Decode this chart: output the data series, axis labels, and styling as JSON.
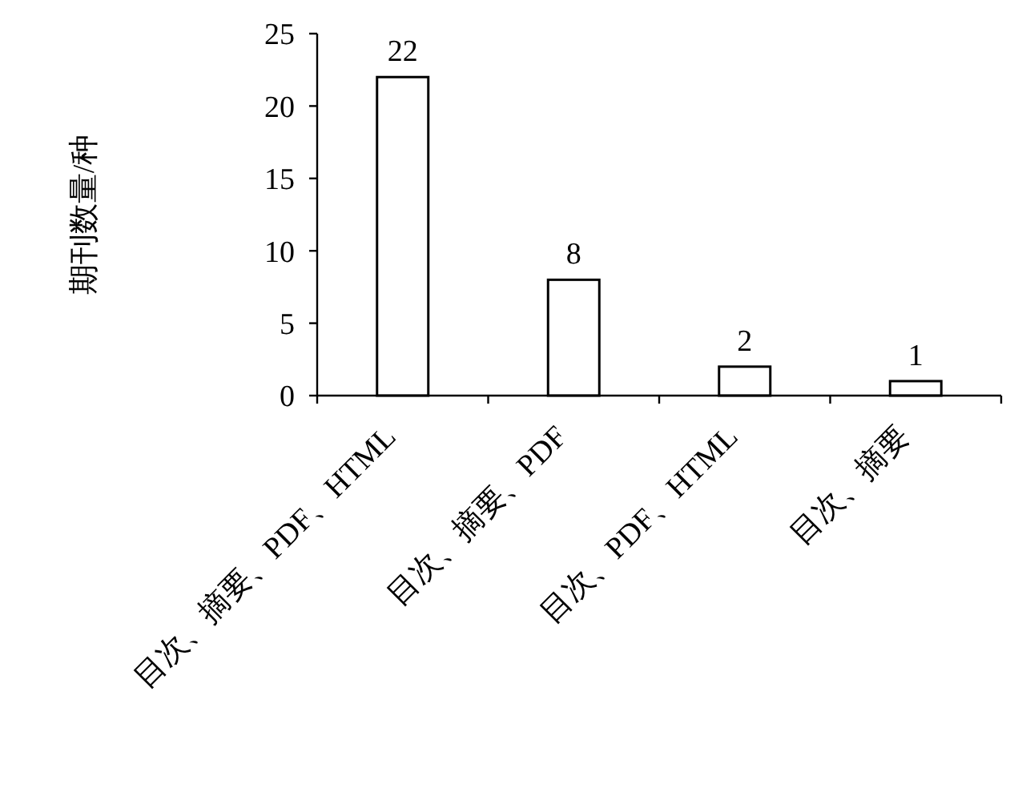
{
  "chart_data": {
    "type": "bar",
    "ylabel": "期刊数量/种",
    "categories": [
      "目次、摘要、PDF、HTML",
      "目次、摘要、PDF",
      "目次、PDF、HTML",
      "目次、摘要"
    ],
    "values": [
      22,
      8,
      2,
      1
    ],
    "color": "#ffffff",
    "ylim": [
      0,
      25
    ],
    "yticks": [
      0,
      5,
      10,
      15,
      20,
      25
    ],
    "grid": false,
    "data_labels": true
  }
}
